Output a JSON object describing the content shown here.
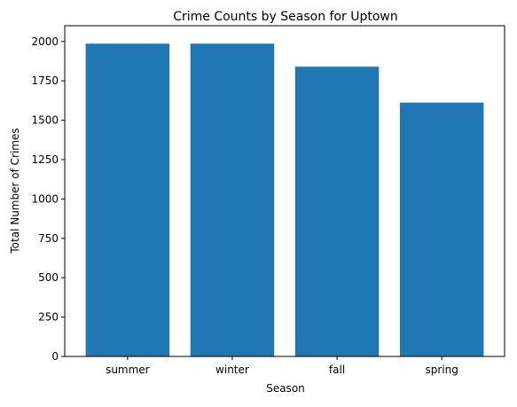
{
  "chart_data": {
    "type": "bar",
    "title": "Crime Counts by Season for Uptown",
    "xlabel": "Season",
    "ylabel": "Total Number of Crimes",
    "categories": [
      "summer",
      "winter",
      "fall",
      "spring"
    ],
    "values": [
      1986,
      1986,
      1840,
      1612
    ],
    "ylim": [
      0,
      2100
    ],
    "yticks": [
      0,
      250,
      500,
      750,
      1000,
      1250,
      1500,
      1750,
      2000
    ],
    "ytick_labels": [
      "0",
      "250",
      "500",
      "750",
      "1000",
      "1250",
      "1500",
      "1750",
      "2000"
    ],
    "grid": false,
    "legend": "none",
    "bar_color": "#1f77b4"
  }
}
